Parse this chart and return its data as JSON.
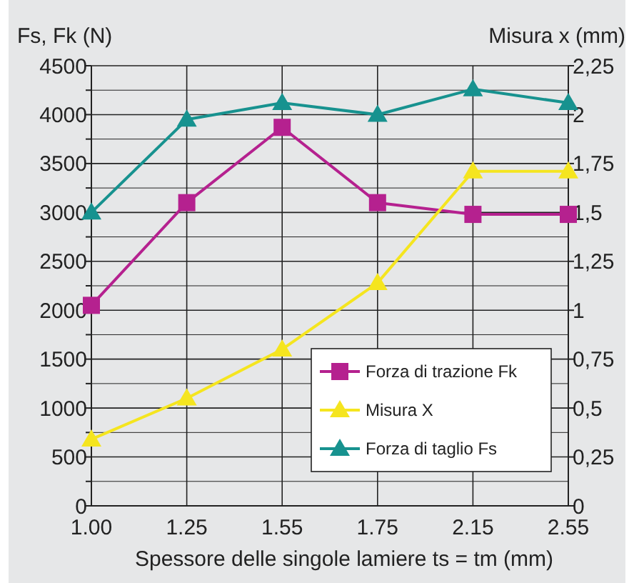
{
  "chart_data": {
    "type": "line",
    "xlabel": "Spessore delle singole lamiere ts = tm (mm)",
    "ylabel": "Fs, Fk (N)",
    "y2label": "Misura x (mm)",
    "categories": [
      "1.00",
      "1.25",
      "1.55",
      "1.75",
      "2.15",
      "2.55"
    ],
    "series": [
      {
        "name": "Forza di trazione Fk",
        "color": "#b5218f",
        "marker": "square",
        "values": [
          2050,
          3100,
          3870,
          3100,
          2980,
          2980
        ]
      },
      {
        "name": "Misura X",
        "color": "#f5e51f",
        "marker": "triangle",
        "axis": "y2",
        "values": [
          0.34,
          0.55,
          0.8,
          1.14,
          1.71,
          1.71
        ]
      },
      {
        "name": "Forza di taglio Fs",
        "color": "#17928f",
        "marker": "triangle",
        "values": [
          3000,
          3950,
          4120,
          4000,
          4260,
          4120
        ]
      }
    ],
    "ylim": [
      0,
      4500
    ],
    "yticks": [
      0,
      {
        "value": 250,
        "label": null
      },
      500,
      {
        "value": 750,
        "label": null
      },
      1000,
      {
        "value": 1250,
        "label": null
      },
      1500,
      {
        "value": 1750,
        "label": null
      },
      2000,
      {
        "value": 2250,
        "label": null
      },
      2500,
      {
        "value": 2750,
        "label": null
      },
      3000,
      {
        "value": 3250,
        "label": null
      },
      3500,
      {
        "value": 3750,
        "label": null
      },
      4000,
      {
        "value": 4250,
        "label": null
      },
      4500
    ],
    "y2lim": [
      0,
      2.25
    ],
    "y2ticks": [
      0,
      {
        "value": 0.25,
        "label": "0,25"
      },
      {
        "value": 0.5,
        "label": "0,5"
      },
      {
        "value": 0.75,
        "label": "0,75"
      },
      1,
      {
        "value": 1.25,
        "label": "1,25"
      },
      {
        "value": 1.5,
        "label": "1,5"
      },
      {
        "value": 1.75,
        "label": "1,75"
      },
      2,
      {
        "value": 2.25,
        "label": "2,25"
      }
    ],
    "grid": true,
    "legend": "bottom right",
    "line_style": "solid"
  }
}
